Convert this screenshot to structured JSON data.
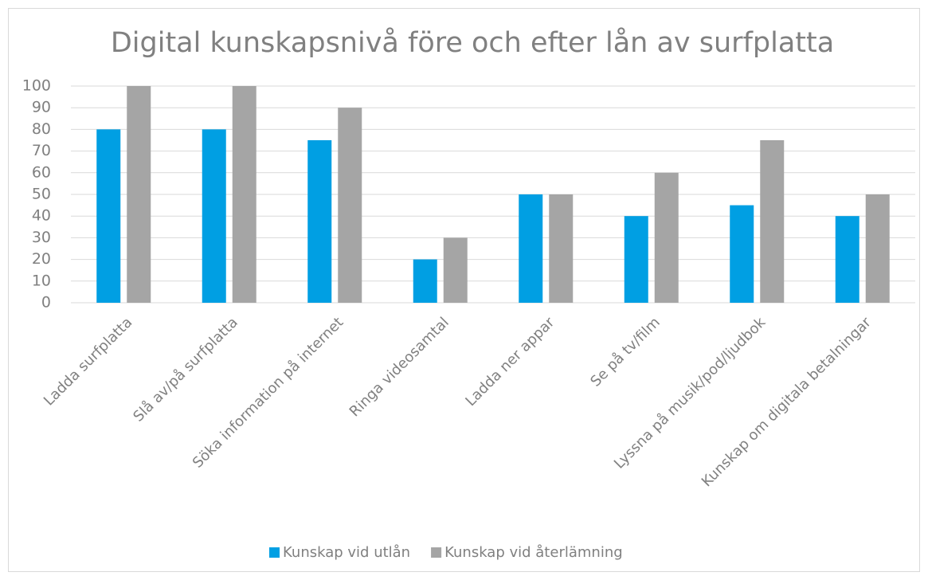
{
  "chart_data": {
    "type": "bar",
    "title": "Digital kunskapsnivå före och efter lån av surfplatta",
    "categories": [
      "Ladda surfplatta",
      "Slå av/på surfplatta",
      "Söka information på internet",
      "Ringa videosamtal",
      "Ladda ner appar",
      "Se på tv/film",
      "Lyssna på musik/pod/ljudbok",
      "Kunskap om digitala betalningar"
    ],
    "series": [
      {
        "name": "Kunskap vid utlån",
        "color": "#009fe3",
        "values": [
          80,
          80,
          75,
          20,
          50,
          40,
          45,
          40
        ]
      },
      {
        "name": "Kunskap vid återlämning",
        "color": "#a5a5a5",
        "values": [
          100,
          100,
          90,
          30,
          50,
          60,
          75,
          50
        ]
      }
    ],
    "ylim": [
      0,
      100
    ],
    "yticks": [
      0,
      10,
      20,
      30,
      40,
      50,
      60,
      70,
      80,
      90,
      100
    ],
    "grid": true,
    "legend": "bottom"
  }
}
